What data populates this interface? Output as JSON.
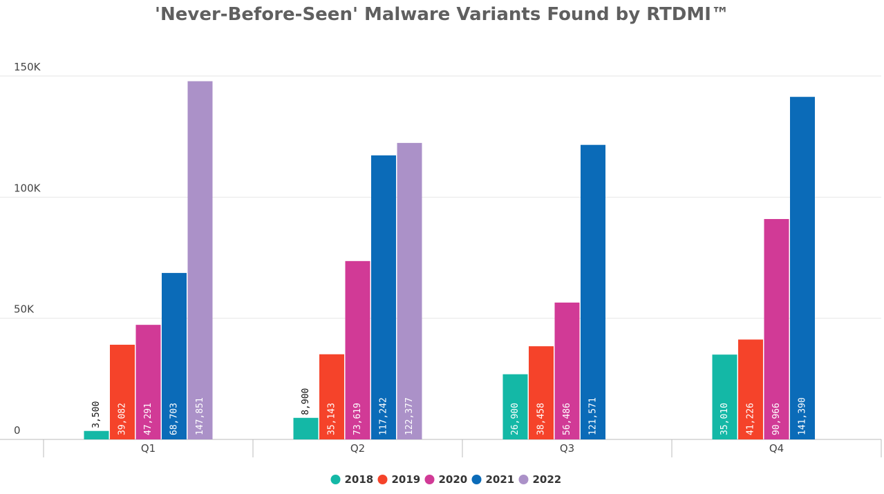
{
  "chart_data": {
    "type": "bar",
    "title": "'Never-Before-Seen' Malware Variants Found by RTDMI™",
    "categories": [
      "Q1",
      "Q2",
      "Q3",
      "Q4"
    ],
    "ylim": [
      0,
      150000
    ],
    "yticks": [
      0,
      50000,
      100000,
      150000
    ],
    "ytick_labels": [
      "0",
      "50K",
      "100K",
      "150K"
    ],
    "grid": true,
    "legend_position": "bottom-center",
    "series": [
      {
        "name": "2018",
        "color": "#14b8a6",
        "values": [
          3500,
          8900,
          26900,
          35010
        ],
        "labels": [
          "3,500",
          "8,900",
          "26,900",
          "35,010"
        ]
      },
      {
        "name": "2019",
        "color": "#f5432a",
        "values": [
          39082,
          35143,
          38458,
          41226
        ],
        "labels": [
          "39,082",
          "35,143",
          "38,458",
          "41,226"
        ]
      },
      {
        "name": "2020",
        "color": "#d13a96",
        "values": [
          47291,
          73619,
          56486,
          90966
        ],
        "labels": [
          "47,291",
          "73,619",
          "56,486",
          "90,966"
        ]
      },
      {
        "name": "2021",
        "color": "#0b6bb8",
        "values": [
          68703,
          117242,
          121571,
          141390
        ],
        "labels": [
          "68,703",
          "117,242",
          "121,571",
          "141,390"
        ]
      },
      {
        "name": "2022",
        "color": "#ab91c8",
        "values": [
          147851,
          122377,
          null,
          null
        ],
        "labels": [
          "147,851",
          "122,377",
          "",
          ""
        ]
      }
    ]
  }
}
